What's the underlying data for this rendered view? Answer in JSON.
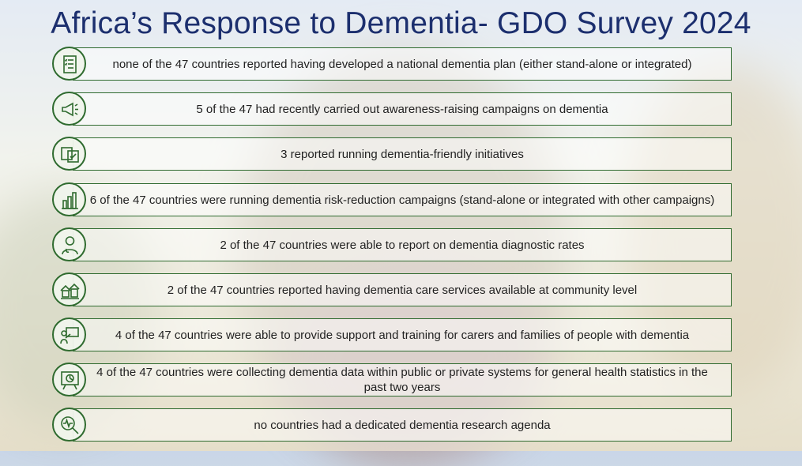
{
  "title": "Africa’s Response to Dementia- GDO Survey 2024",
  "colors": {
    "title": "#1c2f6e",
    "border": "#2f6b2f"
  },
  "items": [
    {
      "icon": "checklist-icon",
      "text": "none of the 47 countries reported having developed a national dementia plan (either stand-alone or integrated)"
    },
    {
      "icon": "megaphone-icon",
      "text": "5 of the 47 had recently carried out awareness-raising campaigns on dementia"
    },
    {
      "icon": "poster-icon",
      "text": "3 reported running dementia-friendly initiatives"
    },
    {
      "icon": "bar-chart-icon",
      "text": "6 of the 47 countries were running dementia risk-reduction campaigns (stand-alone or integrated with other campaigns)"
    },
    {
      "icon": "doctor-icon",
      "text": "2 of the 47 countries were able to report on dementia diagnostic rates"
    },
    {
      "icon": "community-icon",
      "text": "2 of the 47 countries reported having dementia care services available at community level"
    },
    {
      "icon": "presentation-icon",
      "text": "4 of the 47 countries were able to provide support and training for carers and families of people with dementia"
    },
    {
      "icon": "data-board-icon",
      "text": "4 of the 47 countries were collecting dementia data within public or private systems for general health statistics in the past two years"
    },
    {
      "icon": "research-icon",
      "text": "no countries had a dedicated dementia research agenda"
    }
  ]
}
